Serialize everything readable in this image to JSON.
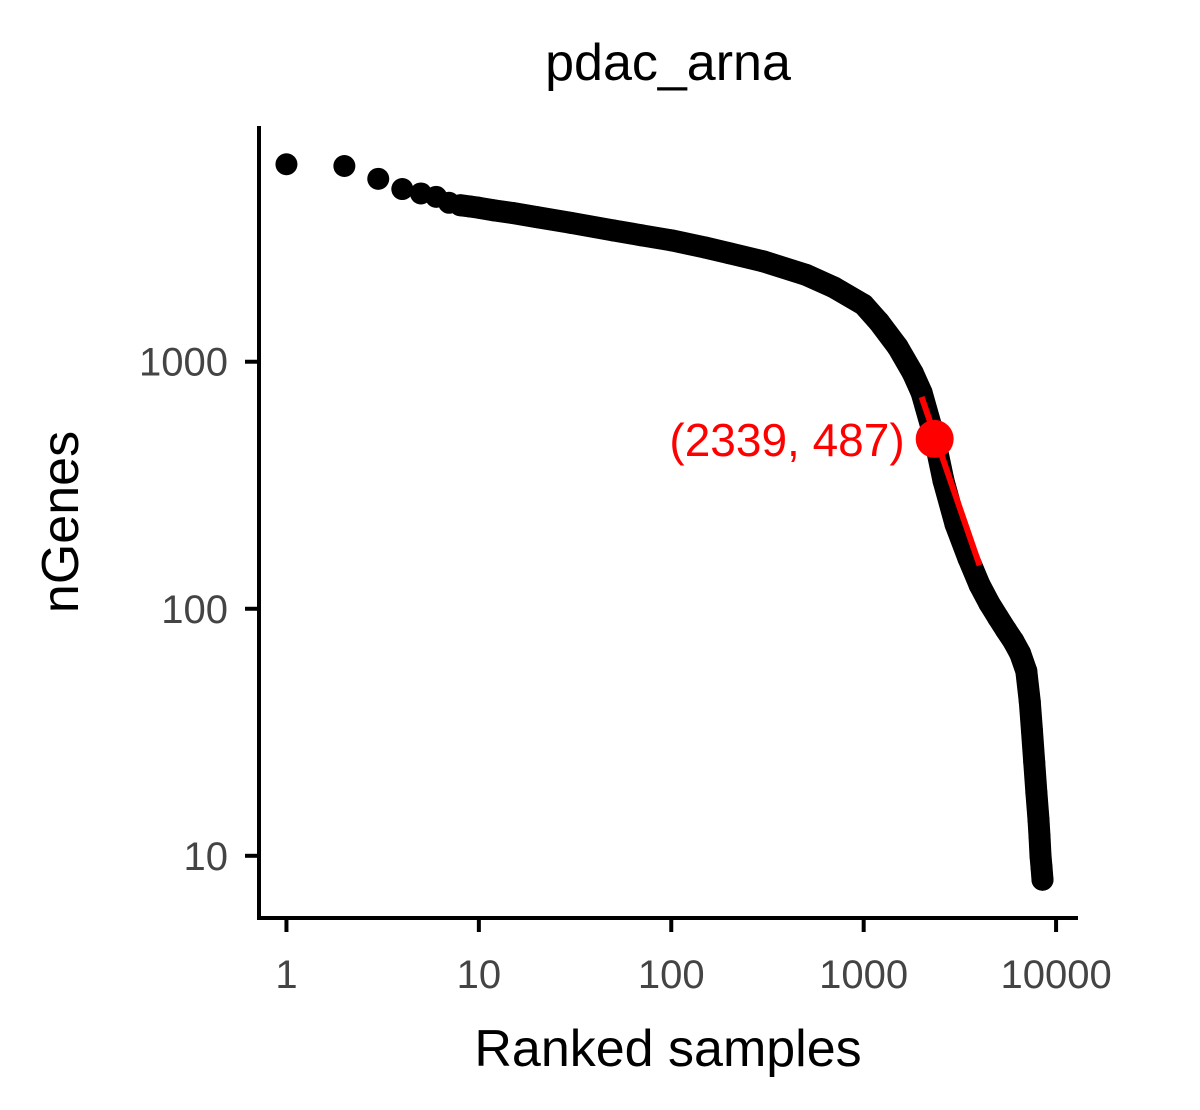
{
  "chart_data": {
    "type": "scatter",
    "title": "pdac_arna",
    "xlabel": "Ranked samples",
    "ylabel": "nGenes",
    "xscale": "log10",
    "yscale": "log10",
    "xlim": [
      0.72,
      13000
    ],
    "ylim": [
      5.6,
      9000
    ],
    "xticks": [
      1,
      10,
      100,
      1000,
      10000
    ],
    "xtick_labels": [
      "1",
      "10",
      "100",
      "1000",
      "10000"
    ],
    "yticks": [
      10,
      100,
      1000
    ],
    "ytick_labels": [
      "10",
      "100",
      "1000"
    ],
    "grid": false,
    "legend": "none",
    "series": [
      {
        "x": [
          1,
          2,
          3,
          4,
          5,
          6,
          7,
          8,
          9,
          10,
          12,
          15,
          20,
          30,
          50,
          70,
          100,
          150,
          200,
          300,
          500,
          700,
          1000,
          1200,
          1500,
          1800,
          2000,
          2339,
          2600,
          3000,
          3500,
          4000,
          4500,
          5000,
          5500,
          6000,
          6500,
          7000,
          7300,
          7500,
          7700,
          7900,
          8100,
          8200,
          8300,
          8400,
          8500
        ],
        "y": [
          6300,
          6200,
          5500,
          5000,
          4800,
          4650,
          4400,
          4300,
          4250,
          4200,
          4100,
          4000,
          3850,
          3650,
          3400,
          3250,
          3100,
          2900,
          2750,
          2550,
          2250,
          2000,
          1700,
          1450,
          1150,
          900,
          750,
          487,
          330,
          220,
          160,
          125,
          105,
          92,
          82,
          74,
          66,
          56,
          42,
          32,
          24,
          18,
          14,
          12,
          10,
          9,
          8
        ]
      }
    ],
    "highlight": {
      "x": 2339,
      "y": 487,
      "label": "(2339, 487)"
    },
    "tangent": {
      "x": [
        2000,
        4000
      ],
      "y": [
        720,
        150
      ]
    },
    "colors": {
      "points": "#000000",
      "highlight": "#ff0000",
      "axis": "#000000",
      "tick_label": "#444444"
    }
  }
}
